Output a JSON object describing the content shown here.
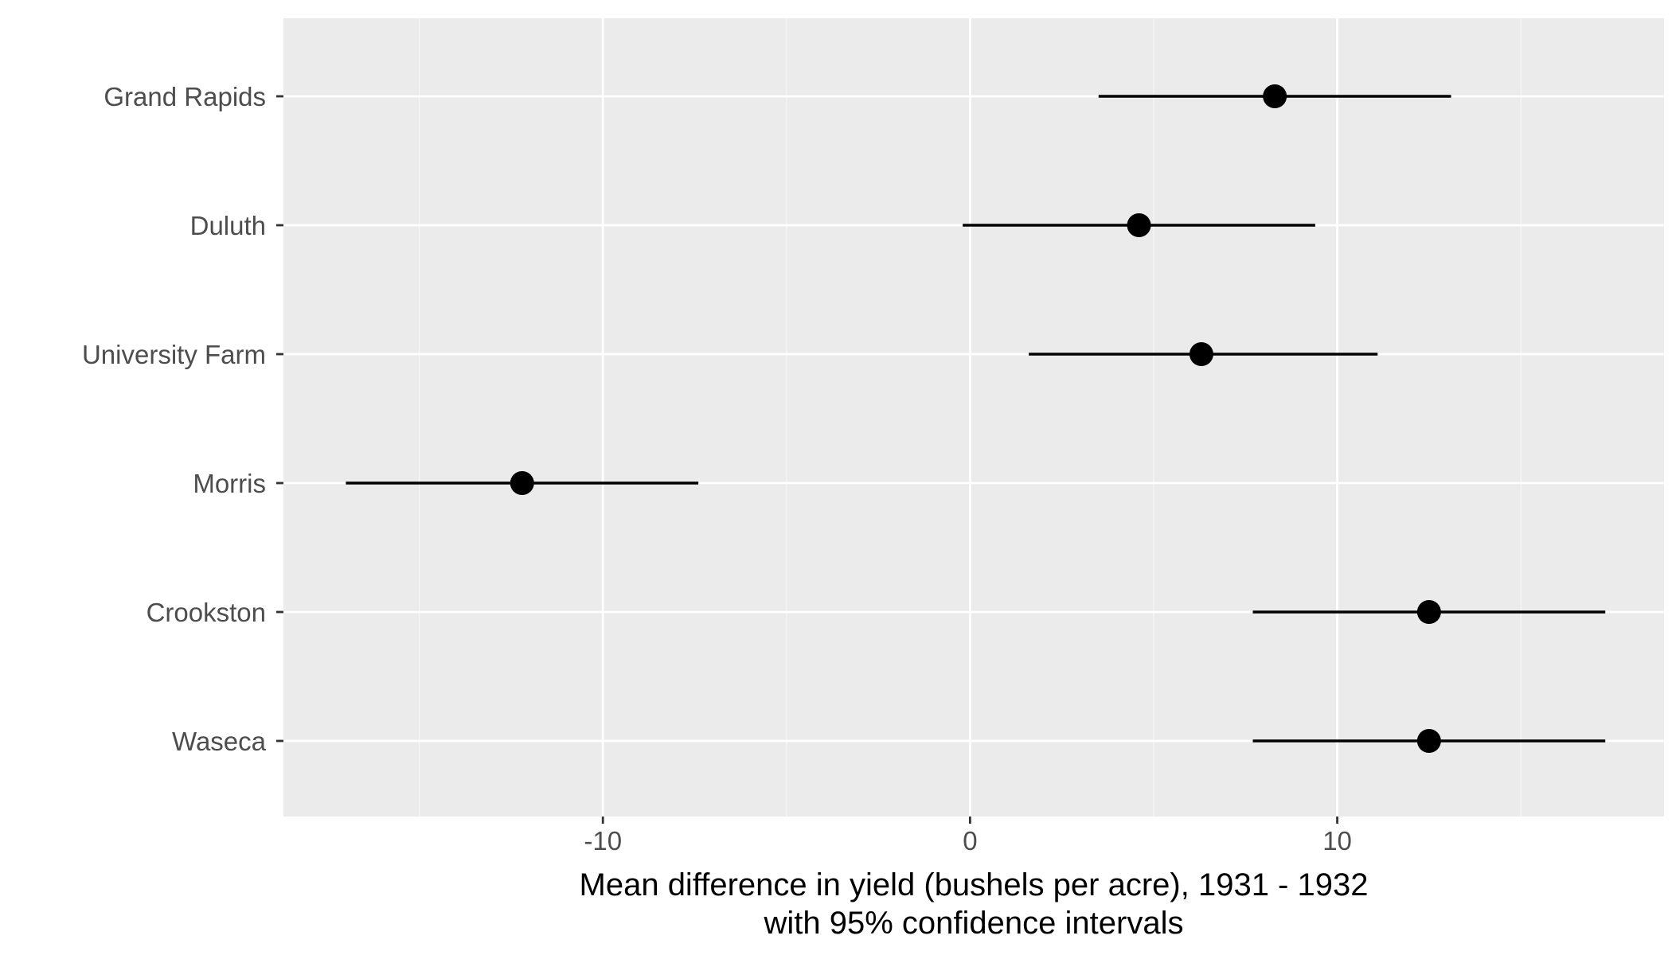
{
  "chart_data": {
    "type": "scatter",
    "subtype": "point-range",
    "orientation": "horizontal",
    "xlabel_lines": [
      "Mean difference in yield (bushels per acre), 1931 - 1932",
      "with 95% confidence intervals"
    ],
    "ylabel": "",
    "title": "",
    "xlim": [
      -18.7,
      18.9
    ],
    "x_ticks": [
      -10,
      0,
      10
    ],
    "x_tick_labels": [
      "-10",
      "0",
      "10"
    ],
    "x_minor_ticks": [
      -15,
      -5,
      5,
      15
    ],
    "grid": true,
    "categories": [
      "Grand Rapids",
      "Duluth",
      "University Farm",
      "Morris",
      "Crookston",
      "Waseca"
    ],
    "points": [
      {
        "site": "Grand Rapids",
        "mean": 8.3,
        "lower": 3.5,
        "upper": 13.1
      },
      {
        "site": "Duluth",
        "mean": 4.6,
        "lower": -0.2,
        "upper": 9.4
      },
      {
        "site": "University Farm",
        "mean": 6.3,
        "lower": 1.6,
        "upper": 11.1
      },
      {
        "site": "Morris",
        "mean": -12.2,
        "lower": -17.0,
        "upper": -7.4
      },
      {
        "site": "Crookston",
        "mean": 12.5,
        "lower": 7.7,
        "upper": 17.3
      },
      {
        "site": "Waseca",
        "mean": 12.5,
        "lower": 7.7,
        "upper": 17.3
      }
    ],
    "colors": {
      "panel_background": "#ebebeb",
      "grid_major": "#ffffff",
      "grid_minor": "#f5f5f5",
      "point": "#000000",
      "interval": "#000000",
      "tick_text": "#4d4d4d",
      "tick_mark": "#333333"
    }
  }
}
